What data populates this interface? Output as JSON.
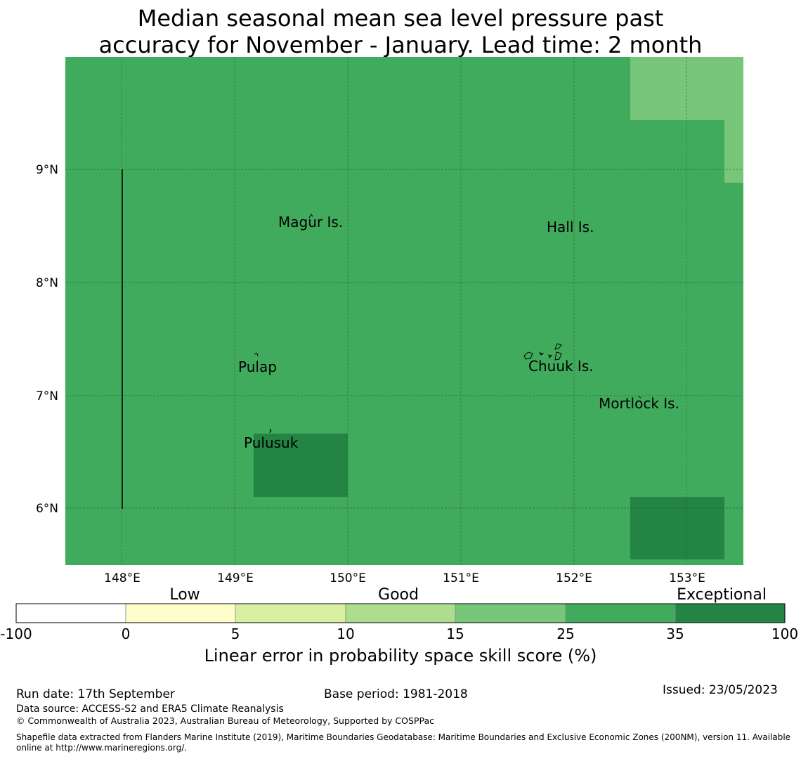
{
  "title": {
    "line1": "Median seasonal mean sea level pressure past",
    "line2": "accuracy for November - January. Lead time: 2 month"
  },
  "map": {
    "lat_labels": [
      "9°N",
      "8°N",
      "7°N",
      "6°N"
    ],
    "lon_labels": [
      "148°E",
      "149°E",
      "150°E",
      "151°E",
      "152°E",
      "153°E"
    ],
    "places": [
      "Magur Is.",
      "Hall Is.",
      "Pulap",
      "Chuuk Is.",
      "Mortlock Is.",
      "Pulusuk"
    ],
    "colors": {
      "base": "#41ab5d",
      "good_light": "#78c679",
      "exceptional": "#238443"
    }
  },
  "colorbar": {
    "categories": [
      "Low",
      "Good",
      "Exceptional"
    ],
    "ticks": [
      "-100",
      "0",
      "5",
      "10",
      "15",
      "25",
      "35",
      "100"
    ],
    "colors": [
      "#ffffff",
      "#ffffcc",
      "#d9f0a3",
      "#addd8e",
      "#78c679",
      "#41ab5d",
      "#238443"
    ],
    "title": "Linear error in probability space skill score (%)"
  },
  "footer": {
    "run_date": "Run date: 17th September",
    "base_period": "Base period: 1981-2018",
    "issued": "Issued: 23/05/2023",
    "data_source": "Data source: ACCESS-S2 and ERA5 Climate Reanalysis",
    "copyright": "© Commonwealth of Australia 2023, Australian Bureau of Meteorology, Supported by COSPPac",
    "shapefile": "Shapefile data extracted from Flanders Marine Institute (2019), Maritime Boundaries Geodatabase: Maritime Boundaries and Exclusive Economic Zones (200NM), version 11. Available online at http://www.marineregions.org/."
  }
}
